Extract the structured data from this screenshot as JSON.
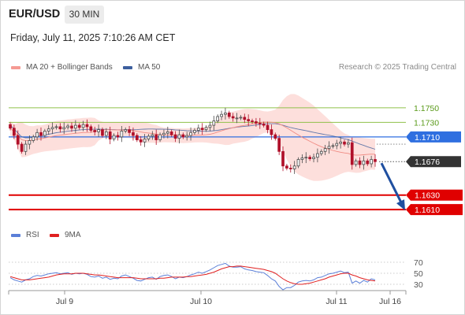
{
  "header": {
    "pair": "EUR/USD",
    "timeframe": "30 MIN"
  },
  "date_line": "Friday, July 11, 2025 7:10:26 AM CET",
  "legend": {
    "ma20": {
      "label": "MA 20 + Bollinger Bands",
      "color": "#f59a93"
    },
    "ma50": {
      "label": "MA 50",
      "color": "#3d5f9e"
    }
  },
  "credit": "Research © 2025 Trading Central",
  "rsi_legend": {
    "rsi": {
      "label": "RSI",
      "color": "#5b7fd8"
    },
    "ma9": {
      "label": "9MA",
      "color": "#e02020"
    }
  },
  "chart_data": [
    {
      "type": "candlestick",
      "ylim": [
        1.1595,
        1.179
      ],
      "levels": [
        {
          "label": "1.1750",
          "value": 1.175,
          "kind": "resistance",
          "color": "#8fc04a"
        },
        {
          "label": "1.1730",
          "value": 1.173,
          "kind": "resistance",
          "color": "#8fc04a"
        },
        {
          "label": "1.1710",
          "value": 1.171,
          "kind": "pivot",
          "color": "#2f6fe0"
        },
        {
          "label": "1.1676",
          "value": 1.1676,
          "kind": "last",
          "color": "#333333"
        },
        {
          "label": "1.1630",
          "value": 1.163,
          "kind": "support",
          "color": "#e00000"
        },
        {
          "label": "1.1610",
          "value": 1.161,
          "kind": "support",
          "color": "#e00000"
        }
      ],
      "x_ticks": [
        "Jul 9",
        "Jul 10",
        "Jul 11",
        "Jul 16"
      ],
      "close": [
        1.1722,
        1.1712,
        1.17,
        1.169,
        1.17,
        1.1705,
        1.171,
        1.1716,
        1.1712,
        1.1718,
        1.1721,
        1.1723,
        1.1724,
        1.1721,
        1.1723,
        1.1725,
        1.1722,
        1.1726,
        1.1723,
        1.1727,
        1.1724,
        1.1719,
        1.1717,
        1.172,
        1.1712,
        1.1717,
        1.1707,
        1.1712,
        1.171,
        1.1718,
        1.172,
        1.1716,
        1.1712,
        1.1706,
        1.1703,
        1.1707,
        1.1711,
        1.1713,
        1.1706,
        1.1713,
        1.1715,
        1.1717,
        1.1713,
        1.1708,
        1.1713,
        1.171,
        1.1712,
        1.1716,
        1.1719,
        1.1722,
        1.172,
        1.1723,
        1.1726,
        1.1732,
        1.1738,
        1.1741,
        1.1743,
        1.1738,
        1.1736,
        1.1736,
        1.1737,
        1.1734,
        1.1732,
        1.1731,
        1.1729,
        1.1728,
        1.1726,
        1.172,
        1.1713,
        1.1708,
        1.169,
        1.167,
        1.1667,
        1.1666,
        1.167,
        1.1679,
        1.1681,
        1.1682,
        1.168,
        1.1682,
        1.1687,
        1.169,
        1.1694,
        1.1697,
        1.1698,
        1.1701,
        1.1703,
        1.17,
        1.1702,
        1.1672,
        1.1677,
        1.1672,
        1.1677,
        1.1673,
        1.1679,
        1.1676
      ]
    },
    {
      "type": "line",
      "title": "RSI",
      "ylim": [
        20,
        80
      ],
      "y_ticks": [
        70,
        50,
        30
      ],
      "series": [
        {
          "name": "RSI",
          "values": [
            42,
            38,
            36,
            34,
            38,
            40,
            44,
            46,
            45,
            47,
            49,
            50,
            51,
            49,
            50,
            51,
            48,
            50,
            49,
            50,
            48,
            44,
            43,
            45,
            41,
            43,
            39,
            41,
            40,
            45,
            47,
            44,
            41,
            37,
            36,
            39,
            42,
            43,
            39,
            44,
            46,
            47,
            44,
            40,
            43,
            42,
            44,
            47,
            49,
            52,
            50,
            53,
            56,
            60,
            64,
            66,
            68,
            63,
            61,
            61,
            62,
            58,
            56,
            55,
            53,
            52,
            51,
            46,
            40,
            36,
            26,
            20,
            24,
            24,
            28,
            34,
            36,
            37,
            36,
            38,
            42,
            43,
            46,
            49,
            50,
            52,
            54,
            51,
            52,
            32,
            36,
            32,
            37,
            34,
            40,
            38
          ]
        },
        {
          "name": "9MA",
          "values": [
            44,
            42,
            40,
            38,
            38,
            38,
            39,
            40,
            41,
            42,
            43,
            45,
            47,
            48,
            49,
            49,
            49,
            50,
            50,
            50,
            49,
            48,
            47,
            47,
            46,
            45,
            44,
            43,
            42,
            42,
            42,
            42,
            42,
            41,
            40,
            40,
            40,
            40,
            40,
            41,
            41,
            42,
            43,
            43,
            43,
            43,
            44,
            44,
            45,
            46,
            47,
            48,
            50,
            52,
            55,
            58,
            60,
            62,
            62,
            63,
            63,
            62,
            61,
            60,
            59,
            58,
            57,
            55,
            53,
            50,
            45,
            40,
            36,
            33,
            31,
            30,
            30,
            31,
            32,
            34,
            36,
            38,
            40,
            43,
            45,
            47,
            49,
            50,
            50,
            47,
            45,
            42,
            40,
            38,
            37,
            36
          ]
        }
      ]
    }
  ]
}
